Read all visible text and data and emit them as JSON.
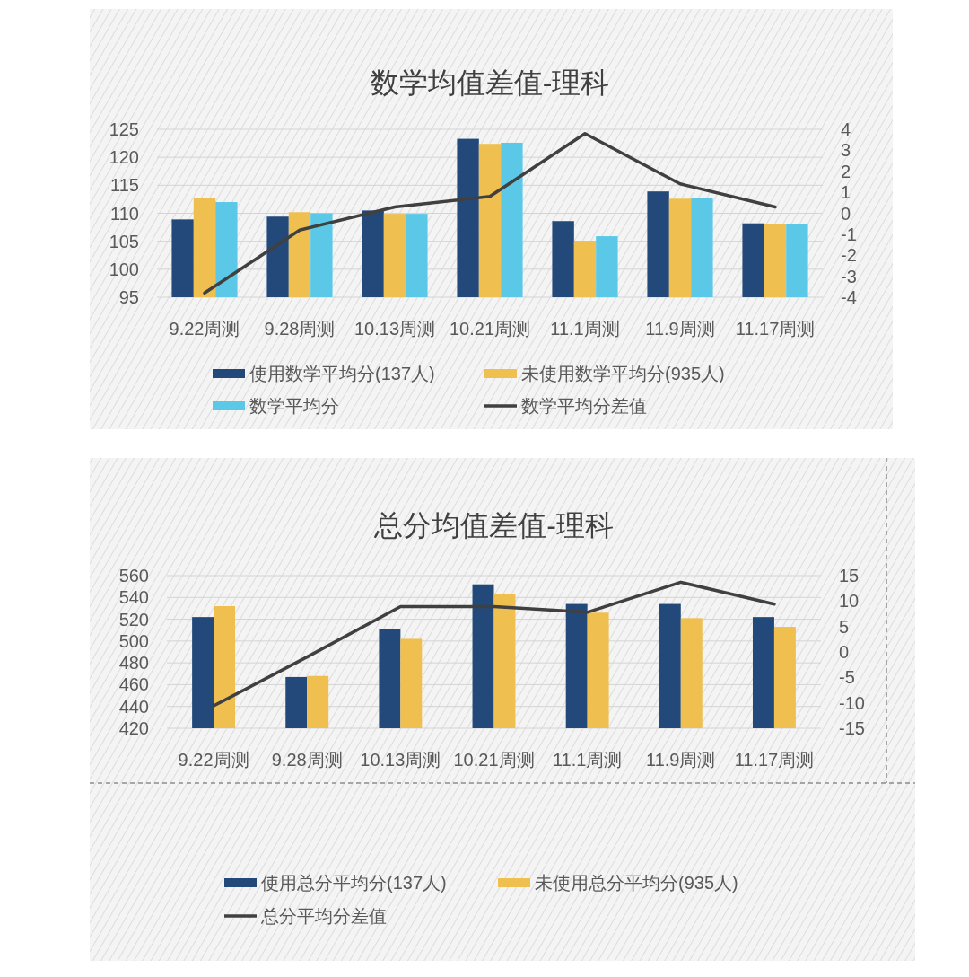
{
  "chart_data": [
    {
      "type": "bar",
      "title": "数学均值差值-理科",
      "categories": [
        "9.22周测",
        "9.28周测",
        "10.13周测",
        "10.21周测",
        "11.1周测",
        "11.9周测",
        "11.17周测"
      ],
      "series": [
        {
          "name": "使用数学平均分(137人)",
          "color": "#22497a",
          "values": [
            108.9,
            109.4,
            110.5,
            123.3,
            108.6,
            113.9,
            108.2
          ]
        },
        {
          "name": "未使用数学平均分(935人)",
          "color": "#efc050",
          "values": [
            112.7,
            110.2,
            109.9,
            122.4,
            105.1,
            112.6,
            108.0
          ]
        },
        {
          "name": "数学平均分",
          "color": "#5bc8e8",
          "values": [
            112.0,
            110.0,
            109.9,
            122.6,
            105.9,
            112.7,
            108.0
          ]
        },
        {
          "name": "数学平均分差值",
          "type": "line",
          "axis": "y2",
          "color": "#404040",
          "values": [
            -3.8,
            -0.8,
            0.3,
            0.8,
            3.8,
            1.4,
            0.3
          ]
        }
      ],
      "ylim": [
        95,
        125
      ],
      "yticks": [
        95,
        100,
        105,
        110,
        115,
        120,
        125
      ],
      "y2lim": [
        -4,
        4
      ],
      "y2ticks": [
        -4,
        -3,
        -2,
        -1,
        0,
        1,
        2,
        3,
        4
      ],
      "grid": "y",
      "legend": "bottom"
    },
    {
      "type": "bar",
      "title": "总分均值差值-理科",
      "categories": [
        "9.22周测",
        "9.28周测",
        "10.13周测",
        "10.21周测",
        "11.1周测",
        "11.9周测",
        "11.17周测"
      ],
      "series": [
        {
          "name": "使用总分平均分(137人)",
          "color": "#22497a",
          "values": [
            522,
            467,
            511,
            552,
            534,
            534,
            522
          ]
        },
        {
          "name": "未使用总分平均分(935人)",
          "color": "#efc050",
          "values": [
            532,
            468,
            502,
            543,
            526,
            521,
            513
          ]
        },
        {
          "name": "总分平均分差值",
          "type": "line",
          "axis": "y2",
          "color": "#404040",
          "values": [
            -10.6,
            -1.0,
            8.9,
            8.9,
            7.8,
            13.7,
            9.4
          ]
        }
      ],
      "ylim": [
        420,
        560
      ],
      "yticks": [
        420,
        440,
        460,
        480,
        500,
        520,
        540,
        560
      ],
      "y2lim": [
        -15,
        15
      ],
      "y2ticks": [
        -15,
        -10,
        -5,
        0,
        5,
        10,
        15
      ],
      "grid": "y",
      "legend": "bottom"
    }
  ]
}
